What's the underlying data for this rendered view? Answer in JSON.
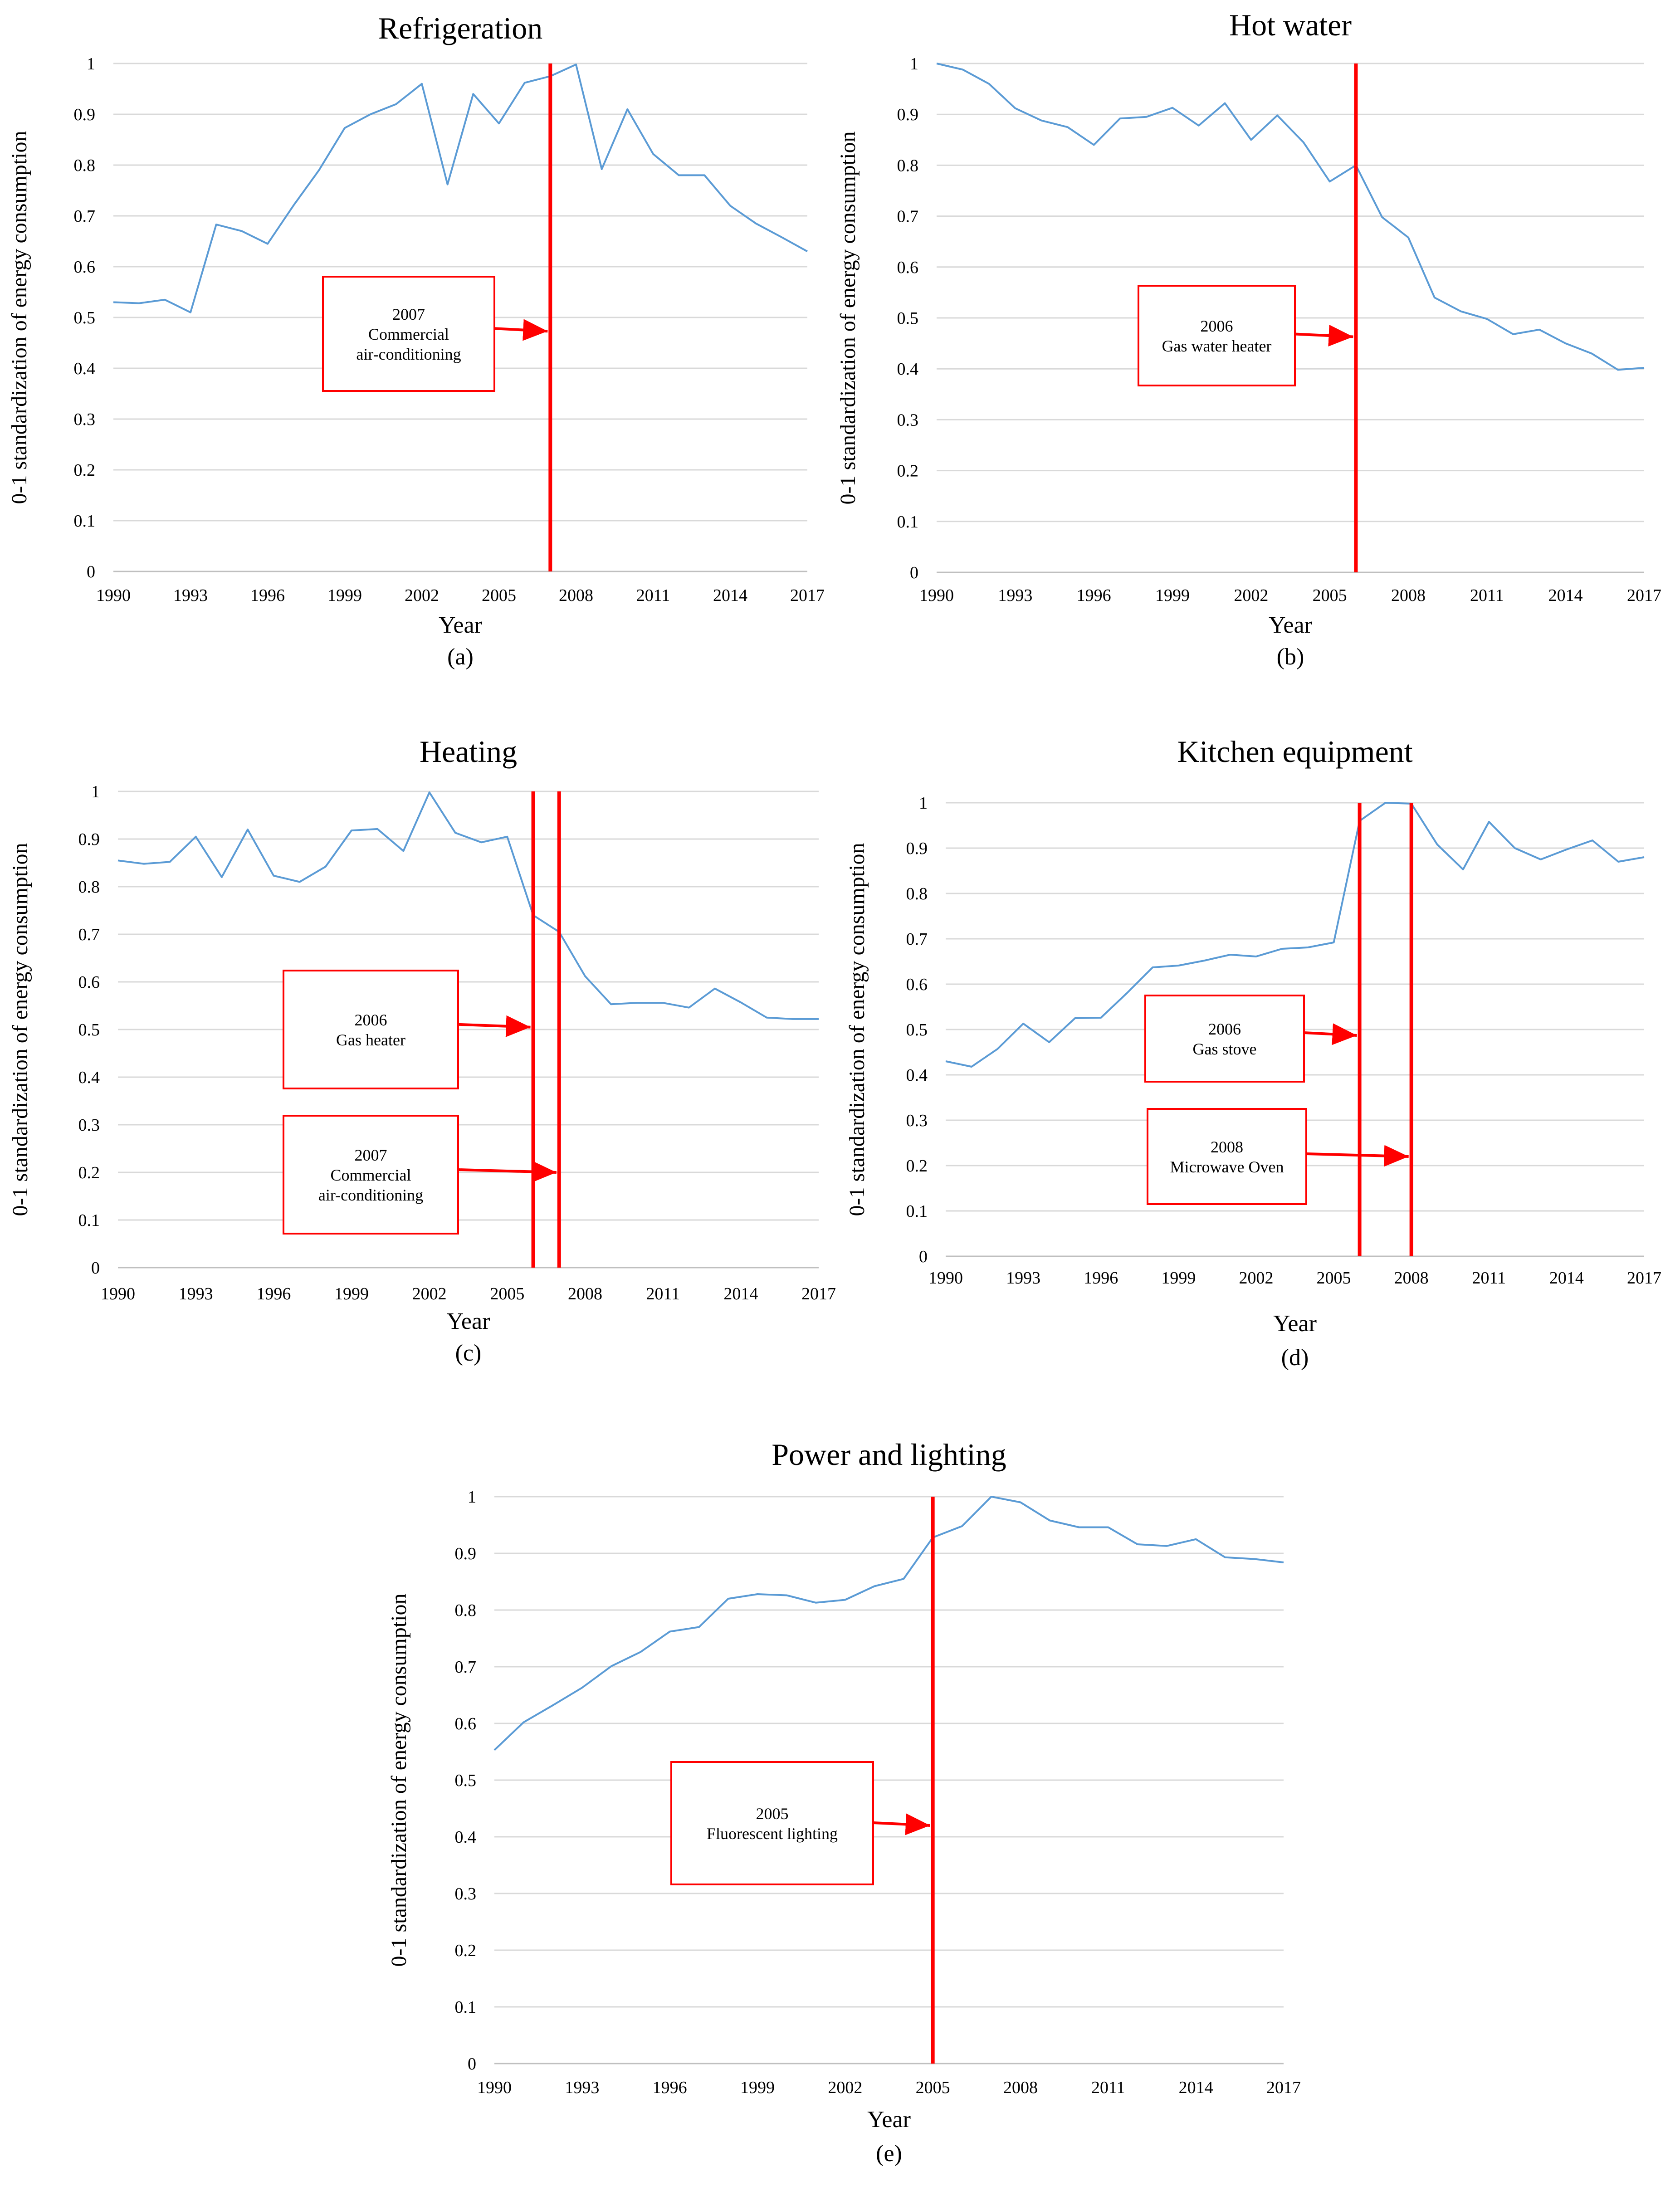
{
  "figure": {
    "line_color": "#5B9BD5",
    "marker_color": "#FF0000",
    "grid_color": "#D9D9D9"
  },
  "chart_data": [
    {
      "type": "line",
      "panel_label": "(a)",
      "title": "Refrigeration",
      "xlabel": "Year",
      "ylabel": "0-1 standardization of energy consumption",
      "xlim": [
        1990,
        2017
      ],
      "ylim": [
        0,
        1
      ],
      "x_ticks": [
        "1990",
        "1993",
        "1996",
        "1999",
        "2002",
        "2005",
        "2008",
        "2011",
        "2014",
        "2017"
      ],
      "y_ticks": [
        "0",
        "0.1",
        "0.2",
        "0.3",
        "0.4",
        "0.5",
        "0.6",
        "0.7",
        "0.8",
        "0.9",
        "1"
      ],
      "x": [
        1990,
        1991,
        1992,
        1993,
        1994,
        1995,
        1996,
        1997,
        1998,
        1999,
        2000,
        2001,
        2002,
        2003,
        2004,
        2005,
        2006,
        2007,
        2008,
        2009,
        2010,
        2011,
        2012,
        2013,
        2014,
        2015,
        2016,
        2017
      ],
      "values": [
        0.53,
        0.528,
        0.535,
        0.51,
        0.683,
        0.67,
        0.645,
        0.72,
        0.79,
        0.873,
        0.9,
        0.92,
        0.96,
        0.762,
        0.94,
        0.882,
        0.962,
        0.975,
        0.998,
        0.792,
        0.91,
        0.822,
        0.78,
        0.78,
        0.72,
        0.685,
        0.658,
        0.63
      ],
      "markers": [
        {
          "year": 2007,
          "line_from": 1.0,
          "line_to": 0.0,
          "arrow_at": 0.473,
          "lines": [
            "2007",
            "Commercial",
            "air-conditioning"
          ]
        }
      ]
    },
    {
      "type": "line",
      "panel_label": "(b)",
      "title": "Hot water",
      "xlabel": "Year",
      "ylabel": "0-1 standardization of energy consumption",
      "xlim": [
        1990,
        2017
      ],
      "ylim": [
        0,
        1
      ],
      "x_ticks": [
        "1990",
        "1993",
        "1996",
        "1999",
        "2002",
        "2005",
        "2008",
        "2011",
        "2014",
        "2017"
      ],
      "y_ticks": [
        "0",
        "0.1",
        "0.2",
        "0.3",
        "0.4",
        "0.5",
        "0.6",
        "0.7",
        "0.8",
        "0.9",
        "1"
      ],
      "x": [
        1990,
        1991,
        1992,
        1993,
        1994,
        1995,
        1996,
        1997,
        1998,
        1999,
        2000,
        2001,
        2002,
        2003,
        2004,
        2005,
        2006,
        2007,
        2008,
        2009,
        2010,
        2011,
        2012,
        2013,
        2014,
        2015,
        2016,
        2017
      ],
      "values": [
        1.0,
        0.988,
        0.96,
        0.912,
        0.888,
        0.875,
        0.84,
        0.892,
        0.895,
        0.913,
        0.878,
        0.922,
        0.85,
        0.898,
        0.845,
        0.768,
        0.8,
        0.698,
        0.658,
        0.54,
        0.513,
        0.498,
        0.468,
        0.477,
        0.45,
        0.43,
        0.398,
        0.402
      ],
      "markers": [
        {
          "year": 2006,
          "line_from": 1.0,
          "line_to": 0.0,
          "arrow_at": 0.463,
          "lines": [
            "2006",
            "Gas water heater"
          ]
        }
      ]
    },
    {
      "type": "line",
      "panel_label": "(c)",
      "title": "Heating",
      "xlabel": "Year",
      "ylabel": "0-1 standardization of energy consumption",
      "xlim": [
        1990,
        2017
      ],
      "ylim": [
        0,
        1
      ],
      "x_ticks": [
        "1990",
        "1993",
        "1996",
        "1999",
        "2002",
        "2005",
        "2008",
        "2011",
        "2014",
        "2017"
      ],
      "y_ticks": [
        "0",
        "0.1",
        "0.2",
        "0.3",
        "0.4",
        "0.5",
        "0.6",
        "0.7",
        "0.8",
        "0.9",
        "1"
      ],
      "x": [
        1990,
        1991,
        1992,
        1993,
        1994,
        1995,
        1996,
        1997,
        1998,
        1999,
        2000,
        2001,
        2002,
        2003,
        2004,
        2005,
        2006,
        2007,
        2008,
        2009,
        2010,
        2011,
        2012,
        2013,
        2014,
        2015,
        2016,
        2017
      ],
      "values": [
        0.855,
        0.848,
        0.852,
        0.905,
        0.82,
        0.92,
        0.823,
        0.81,
        0.842,
        0.918,
        0.921,
        0.875,
        0.998,
        0.913,
        0.893,
        0.905,
        0.74,
        0.705,
        0.612,
        0.553,
        0.556,
        0.556,
        0.546,
        0.586,
        0.557,
        0.525,
        0.522,
        0.522
      ],
      "markers": [
        {
          "year": 2006,
          "line_from": 1.0,
          "line_to": 0.0,
          "arrow_at": 0.505,
          "lines": [
            "2006",
            "Gas heater"
          ]
        },
        {
          "year": 2007,
          "line_from": 1.0,
          "line_to": 0.0,
          "arrow_at": 0.2,
          "lines": [
            "2007",
            "Commercial",
            "air-conditioning"
          ]
        }
      ]
    },
    {
      "type": "line",
      "panel_label": "(d)",
      "title": "Kitchen equipment",
      "xlabel": "Year",
      "ylabel": "0-1 standardization of energy consumption",
      "xlim": [
        1990,
        2017
      ],
      "ylim": [
        0,
        1
      ],
      "x_ticks": [
        "1990",
        "1993",
        "1996",
        "1999",
        "2002",
        "2005",
        "2008",
        "2011",
        "2014",
        "2017"
      ],
      "y_ticks": [
        "0",
        "0.1",
        "0.2",
        "0.3",
        "0.4",
        "0.5",
        "0.6",
        "0.7",
        "0.8",
        "0.9",
        "1"
      ],
      "x": [
        1990,
        1991,
        1992,
        1993,
        1994,
        1995,
        1996,
        1997,
        1998,
        1999,
        2000,
        2001,
        2002,
        2003,
        2004,
        2005,
        2006,
        2007,
        2008,
        2009,
        2010,
        2011,
        2012,
        2013,
        2014,
        2015,
        2016,
        2017
      ],
      "values": [
        0.43,
        0.418,
        0.457,
        0.513,
        0.472,
        0.525,
        0.526,
        0.58,
        0.637,
        0.641,
        0.652,
        0.665,
        0.661,
        0.678,
        0.681,
        0.692,
        0.96,
        1.0,
        0.998,
        0.908,
        0.853,
        0.958,
        0.9,
        0.875,
        0.897,
        0.917,
        0.87,
        0.88
      ],
      "markers": [
        {
          "year": 2006,
          "line_from": 1.0,
          "line_to": 0.0,
          "arrow_at": 0.487,
          "lines": [
            "2006",
            "Gas stove"
          ]
        },
        {
          "year": 2008,
          "line_from": 1.0,
          "line_to": 0.0,
          "arrow_at": 0.22,
          "lines": [
            "2008",
            "Microwave Oven"
          ]
        }
      ]
    },
    {
      "type": "line",
      "panel_label": "(e)",
      "title": "Power and lighting",
      "xlabel": "Year",
      "ylabel": "0-1 standardization of energy consumption",
      "xlim": [
        1990,
        2017
      ],
      "ylim": [
        0,
        1
      ],
      "x_ticks": [
        "1990",
        "1993",
        "1996",
        "1999",
        "2002",
        "2005",
        "2008",
        "2011",
        "2014",
        "2017"
      ],
      "y_ticks": [
        "0",
        "0.1",
        "0.2",
        "0.3",
        "0.4",
        "0.5",
        "0.6",
        "0.7",
        "0.8",
        "0.9",
        "1"
      ],
      "x": [
        1990,
        1991,
        1992,
        1993,
        1994,
        1995,
        1996,
        1997,
        1998,
        1999,
        2000,
        2001,
        2002,
        2003,
        2004,
        2005,
        2006,
        2007,
        2008,
        2009,
        2010,
        2011,
        2012,
        2013,
        2014,
        2015,
        2016,
        2017
      ],
      "values": [
        0.553,
        0.602,
        0.632,
        0.663,
        0.701,
        0.726,
        0.762,
        0.77,
        0.82,
        0.828,
        0.826,
        0.813,
        0.818,
        0.842,
        0.855,
        0.928,
        0.948,
        1.0,
        0.99,
        0.958,
        0.946,
        0.946,
        0.916,
        0.913,
        0.925,
        0.893,
        0.89,
        0.884
      ],
      "markers": [
        {
          "year": 2005,
          "line_from": 1.0,
          "line_to": 0.0,
          "arrow_at": 0.42,
          "lines": [
            "2005",
            "Fluorescent lighting"
          ]
        }
      ]
    }
  ]
}
